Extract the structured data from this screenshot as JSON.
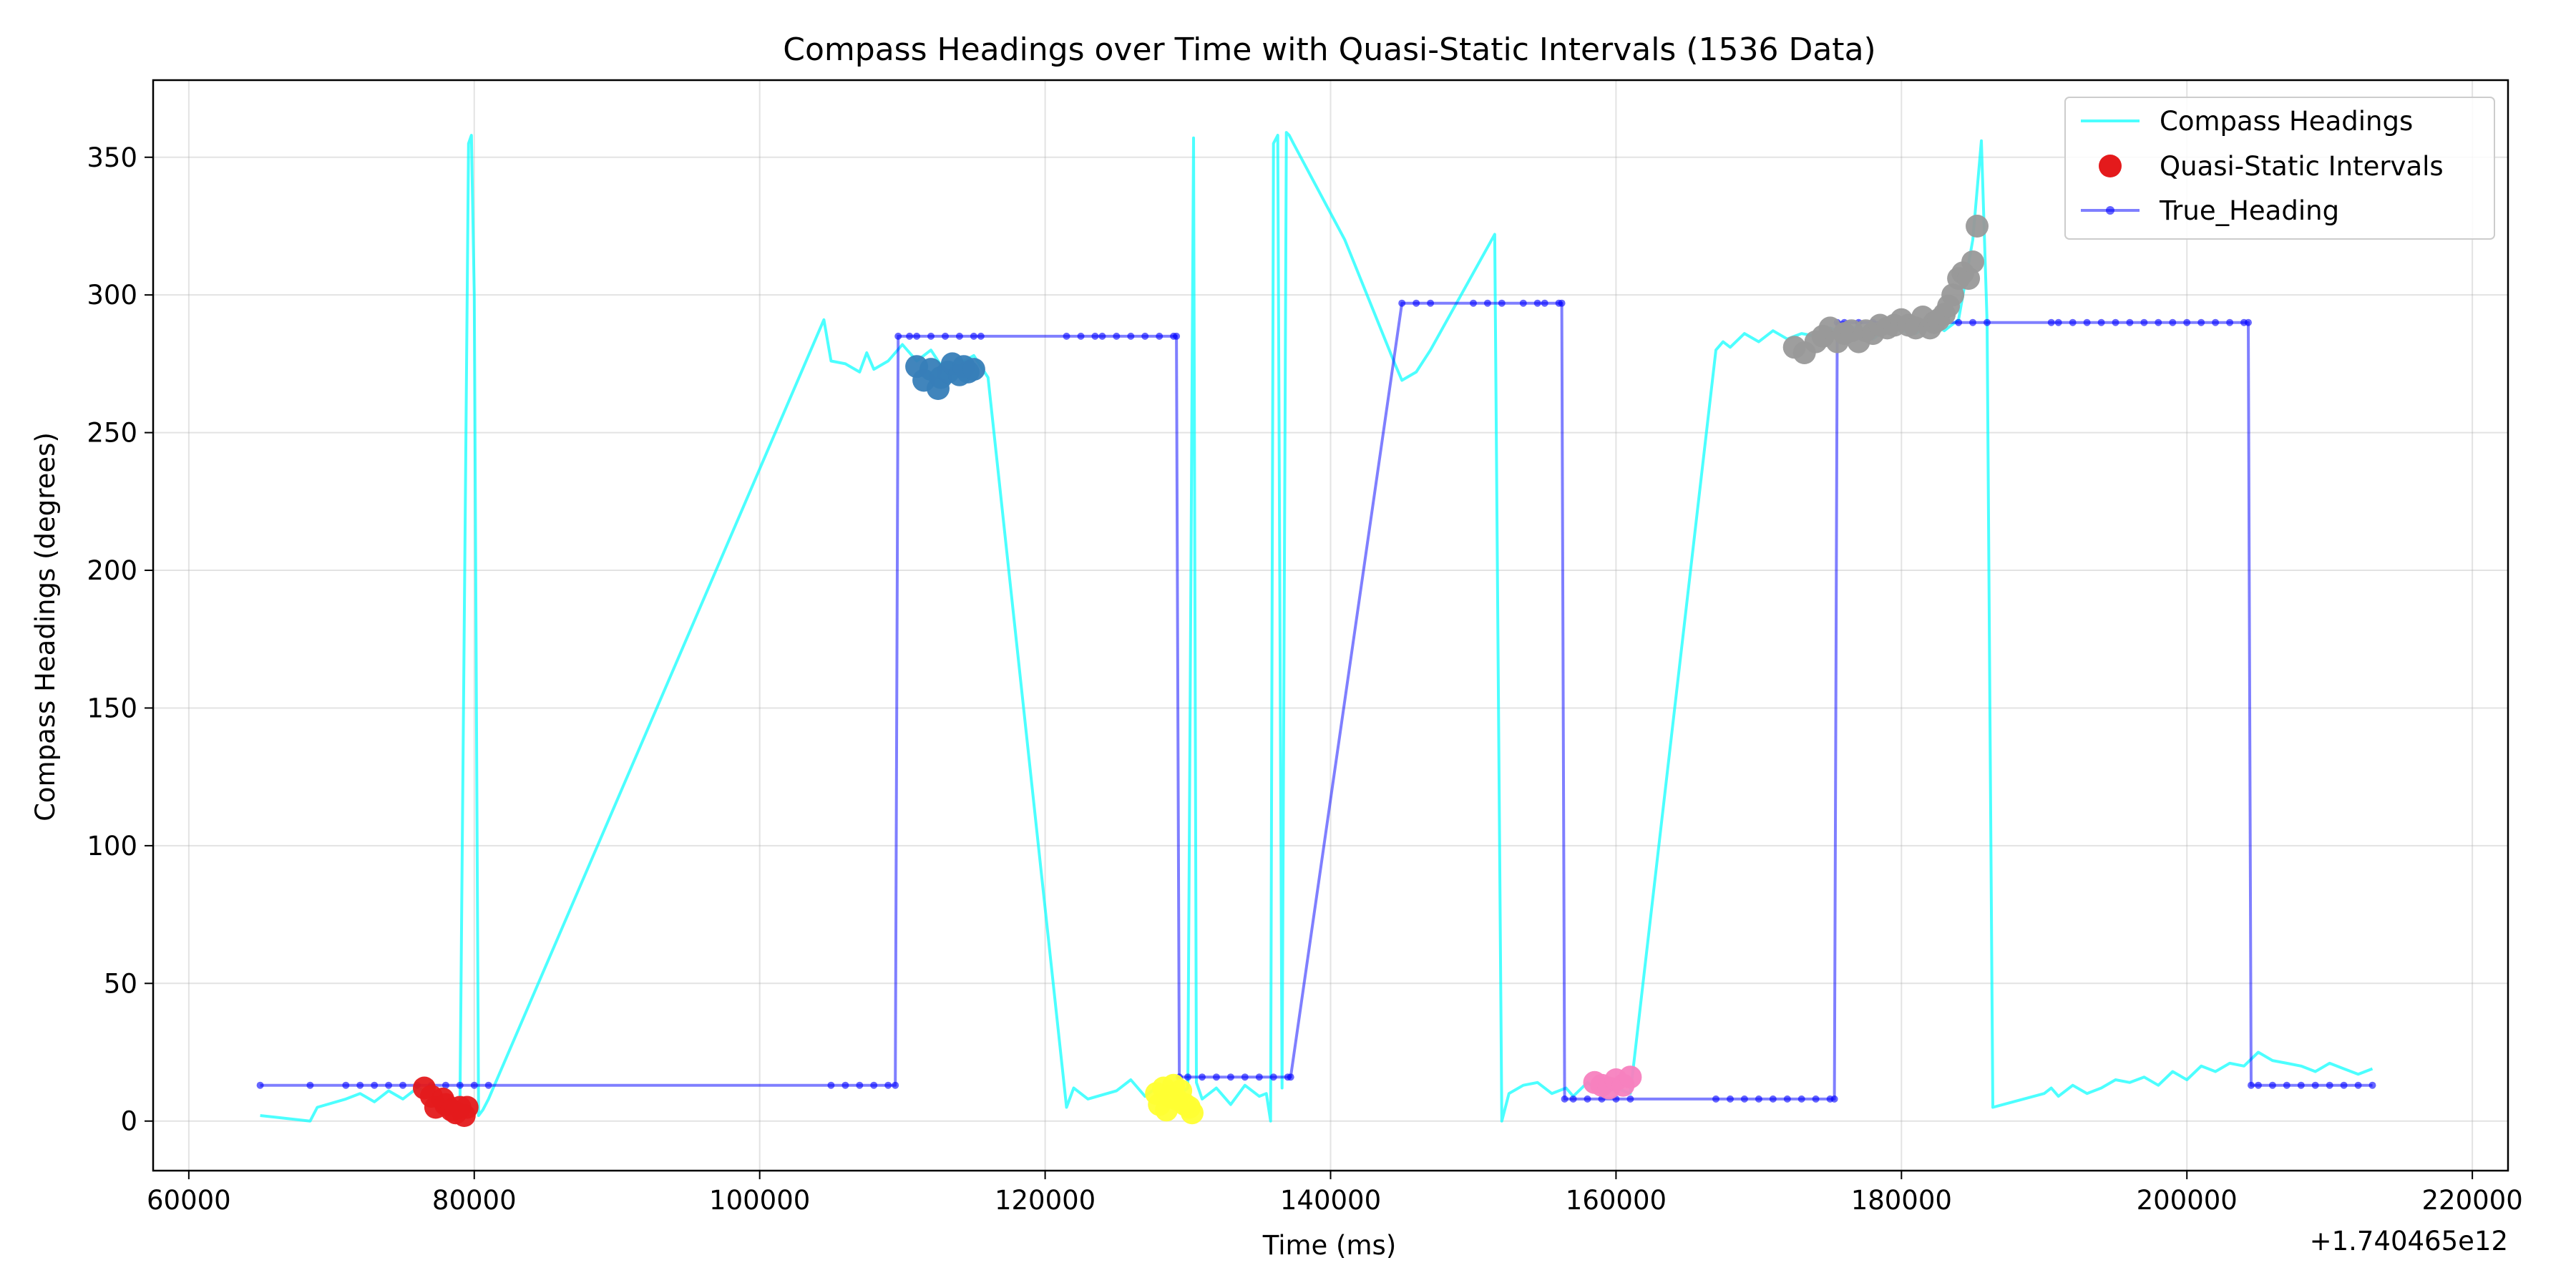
{
  "chart_data": {
    "type": "line",
    "title": "Compass Headings over Time with Quasi-Static Intervals (1536 Data)",
    "xlabel": "Time (ms)",
    "ylabel": "Compass Headings (degrees)",
    "x_offset_label": "+1.740465e12",
    "xlim": [
      57500,
      222500
    ],
    "ylim": [
      -18,
      378
    ],
    "xticks": [
      60000,
      80000,
      100000,
      120000,
      140000,
      160000,
      180000,
      200000,
      220000
    ],
    "yticks": [
      0,
      50,
      100,
      150,
      200,
      250,
      300,
      350
    ],
    "grid": true,
    "legend_position": "top-right",
    "legend": [
      "Compass Headings",
      "Quasi-Static Intervals",
      "True_Heading"
    ],
    "series": [
      {
        "name": "Compass Headings",
        "color": "#00ffff",
        "x": [
          65000,
          68500,
          69000,
          71000,
          72000,
          73000,
          74000,
          75000,
          76000,
          77000,
          78000,
          79000,
          79600,
          79800,
          80000,
          80300,
          80600,
          81000,
          104500,
          105000,
          106000,
          107000,
          107500,
          108000,
          109000,
          110000,
          111000,
          112000,
          113000,
          114000,
          115000,
          116000,
          121500,
          122000,
          123000,
          125000,
          126000,
          127000,
          128000,
          129000,
          130000,
          130400,
          130600,
          131000,
          132000,
          133000,
          134000,
          135000,
          135500,
          135800,
          136000,
          136300,
          136600,
          136900,
          137100,
          137400,
          141000,
          144500,
          145000,
          146000,
          147000,
          151500,
          152000,
          152500,
          153500,
          154500,
          155500,
          156500,
          157000,
          158000,
          159000,
          160000,
          161000,
          167000,
          167500,
          168000,
          169000,
          170000,
          171000,
          172000,
          173000,
          174000,
          175000,
          176000,
          177000,
          178000,
          179000,
          180000,
          181000,
          182000,
          183000,
          184000,
          185000,
          185600,
          186000,
          186400,
          190000,
          190500,
          191000,
          192000,
          193000,
          194000,
          195000,
          196000,
          197000,
          198000,
          199000,
          200000,
          201000,
          202000,
          203000,
          204000,
          205000,
          206000,
          207000,
          208000,
          209000,
          210000,
          211000,
          212000,
          213000
        ],
        "values": [
          2,
          0,
          5,
          8,
          10,
          7,
          11,
          8,
          12,
          10,
          9,
          6,
          355,
          358,
          300,
          2,
          4,
          8,
          291,
          276,
          275,
          272,
          279,
          273,
          276,
          282,
          276,
          280,
          272,
          275,
          278,
          270,
          5,
          12,
          8,
          11,
          15,
          9,
          13,
          8,
          12,
          357,
          14,
          8,
          12,
          6,
          13,
          9,
          10,
          0,
          355,
          358,
          12,
          359,
          358,
          355,
          320,
          275,
          269,
          272,
          280,
          322,
          0,
          10,
          13,
          14,
          10,
          12,
          9,
          14,
          10,
          12,
          10,
          280,
          283,
          281,
          286,
          283,
          287,
          284,
          286,
          285,
          288,
          286,
          289,
          284,
          288,
          287,
          286,
          290,
          287,
          291,
          320,
          356,
          290,
          5,
          10,
          12,
          9,
          13,
          10,
          12,
          15,
          14,
          16,
          13,
          18,
          15,
          20,
          18,
          21,
          20,
          25,
          22,
          21,
          20,
          18,
          21,
          19,
          17,
          19
        ]
      },
      {
        "name": "True_Heading",
        "color": "#0000ff",
        "x": [
          65000,
          68500,
          71000,
          72000,
          73000,
          74000,
          75000,
          76000,
          77000,
          78000,
          79000,
          80000,
          81000,
          105000,
          106000,
          107000,
          108000,
          109000,
          109500,
          109700,
          110500,
          111000,
          112000,
          113000,
          114000,
          115000,
          115500,
          121500,
          122500,
          123500,
          124000,
          125000,
          126000,
          127000,
          128000,
          129000,
          129200,
          129400,
          130000,
          131000,
          132000,
          133000,
          134000,
          135000,
          136000,
          137000,
          137200,
          145000,
          146000,
          147000,
          150000,
          151000,
          152000,
          153500,
          154500,
          155000,
          156000,
          156200,
          156400,
          157000,
          158000,
          159000,
          160000,
          161000,
          167000,
          168000,
          169000,
          170000,
          171000,
          172000,
          173000,
          174000,
          175000,
          175300,
          175500,
          176000,
          177000,
          178000,
          179000,
          180000,
          181000,
          182000,
          183000,
          184000,
          185000,
          186000,
          190500,
          191000,
          192000,
          193000,
          194000,
          195000,
          196000,
          197000,
          198000,
          199000,
          200000,
          201000,
          202000,
          203000,
          204000,
          204300,
          204500,
          205000,
          206000,
          207000,
          208000,
          209000,
          210000,
          211000,
          212000,
          213000
        ],
        "values": [
          13,
          13,
          13,
          13,
          13,
          13,
          13,
          13,
          13,
          13,
          13,
          13,
          13,
          13,
          13,
          13,
          13,
          13,
          13,
          285,
          285,
          285,
          285,
          285,
          285,
          285,
          285,
          285,
          285,
          285,
          285,
          285,
          285,
          285,
          285,
          285,
          285,
          16,
          16,
          16,
          16,
          16,
          16,
          16,
          16,
          16,
          16,
          297,
          297,
          297,
          297,
          297,
          297,
          297,
          297,
          297,
          297,
          297,
          8,
          8,
          8,
          8,
          8,
          8,
          8,
          8,
          8,
          8,
          8,
          8,
          8,
          8,
          8,
          8,
          290,
          290,
          290,
          290,
          290,
          290,
          290,
          290,
          290,
          290,
          290,
          290,
          290,
          290,
          290,
          290,
          290,
          290,
          290,
          290,
          290,
          290,
          290,
          290,
          290,
          290,
          290,
          290,
          13,
          13,
          13,
          13,
          13,
          13,
          13,
          13,
          13,
          13
        ]
      },
      {
        "name": "Quasi-Static Intervals",
        "type": "scatter",
        "groups": [
          {
            "color": "#e41a1c",
            "x": [
              76500,
              77000,
              77300,
              77800,
              78000,
              78400,
              78700,
              79000,
              79300,
              79500
            ],
            "values": [
              12,
              9,
              5,
              8,
              6,
              4,
              3,
              5,
              2,
              5
            ]
          },
          {
            "color": "#377eb8",
            "x": [
              111000,
              111500,
              112000,
              112500,
              112700,
              113200,
              113500,
              114000,
              114300,
              114600,
              115000
            ],
            "values": [
              274,
              269,
              273,
              266,
              270,
              272,
              275,
              271,
              274,
              272,
              273
            ]
          },
          {
            "color": "#ffff33",
            "x": [
              127800,
              128000,
              128300,
              128500,
              128800,
              129000,
              129200,
              129500,
              129800,
              130100,
              130300
            ],
            "values": [
              10,
              6,
              12,
              4,
              9,
              13,
              8,
              11,
              6,
              5,
              3
            ]
          },
          {
            "color": "#f781bf",
            "x": [
              158500,
              159000,
              159500,
              160000,
              160500,
              161000
            ],
            "values": [
              14,
              13,
              12,
              15,
              13,
              16
            ]
          },
          {
            "color": "#999999",
            "x": [
              172500,
              173200,
              174000,
              174500,
              175000,
              175500,
              176000,
              176500,
              177000,
              177500,
              178000,
              178500,
              179000,
              179500,
              180000,
              180500,
              181000,
              181500,
              182000,
              182300,
              182600,
              183000,
              183300,
              183600,
              184000,
              184300,
              184700,
              185000,
              185300
            ],
            "values": [
              281,
              279,
              283,
              285,
              288,
              283,
              286,
              287,
              283,
              287,
              286,
              289,
              288,
              289,
              291,
              289,
              288,
              292,
              288,
              290,
              291,
              293,
              296,
              300,
              306,
              308,
              306,
              312,
              325
            ]
          }
        ]
      }
    ]
  }
}
